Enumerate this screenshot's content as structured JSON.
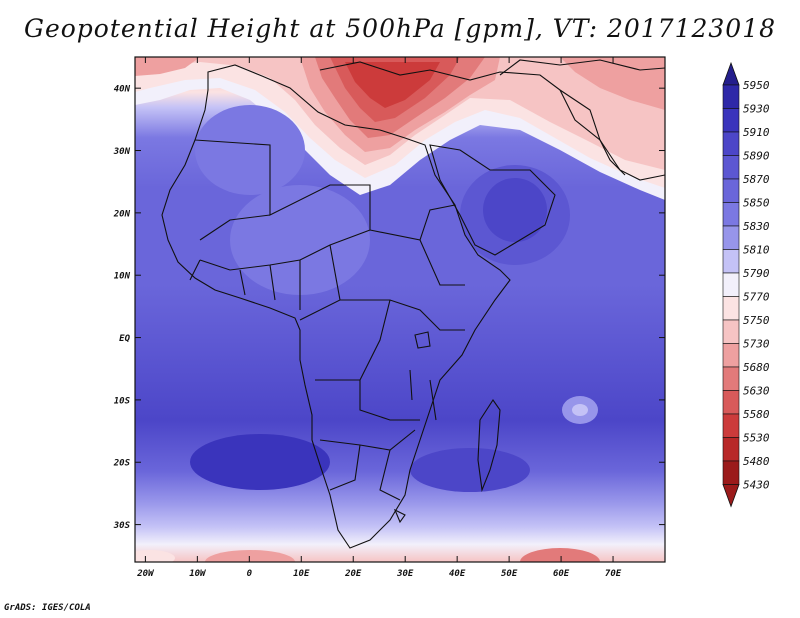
{
  "title": "Geopotential Height at 500hPa [gpm], VT: 2017123018",
  "credit": "GrADS: IGES/COLA",
  "axes": {
    "lat_labels": [
      "40N",
      "30N",
      "20N",
      "10N",
      "EQ",
      "10S",
      "20S",
      "30S"
    ],
    "lat_values": [
      40,
      30,
      20,
      10,
      0,
      -10,
      -20,
      -30
    ],
    "lon_labels": [
      "20W",
      "10W",
      "0",
      "10E",
      "20E",
      "30E",
      "40E",
      "50E",
      "60E",
      "70E"
    ],
    "lon_values": [
      -20,
      -10,
      0,
      10,
      20,
      30,
      40,
      50,
      60,
      70
    ],
    "lon_range": [
      -22,
      80
    ],
    "lat_range": [
      -36,
      45
    ]
  },
  "colorbar": {
    "levels": [
      "5950",
      "5930",
      "5910",
      "5890",
      "5870",
      "5850",
      "5830",
      "5810",
      "5790",
      "5770",
      "5750",
      "5730",
      "5680",
      "5630",
      "5580",
      "5530",
      "5480",
      "5430"
    ],
    "colors": [
      "#241e8c",
      "#2e28a8",
      "#3a34bc",
      "#4c46c8",
      "#5c57d2",
      "#6a66da",
      "#7b78e2",
      "#9795ea",
      "#c4c2f6",
      "#f2f0fb",
      "#fbe3e3",
      "#f6c4c4",
      "#eea0a0",
      "#e27a7a",
      "#d85a5a",
      "#cc3b3b",
      "#b82828",
      "#9b1b1b"
    ]
  }
}
